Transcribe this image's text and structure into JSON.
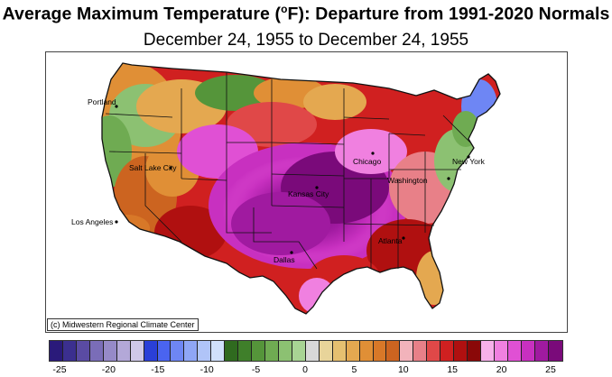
{
  "title_main": "Average Maximum Temperature (",
  "title_degree": "o",
  "title_rest": "F): Departure from 1991-2020 Normals",
  "subtitle": "December 24, 1955 to December 24, 1955",
  "credit": "(c) Midwestern Regional Climate Center",
  "cities": [
    {
      "name": "Portland"
    },
    {
      "name": "Salt Lake City"
    },
    {
      "name": "Los Angeles"
    },
    {
      "name": "Dallas"
    },
    {
      "name": "New York"
    },
    {
      "name": "Washington"
    },
    {
      "name": "Kansas City"
    },
    {
      "name": "Chicago"
    },
    {
      "name": "Atlanta"
    }
  ],
  "legend": {
    "colors": [
      "#2a1a7a",
      "#3b2f8f",
      "#5a4ba3",
      "#7a6db8",
      "#968ac8",
      "#b3a8d8",
      "#cfc8e8",
      "#2a3fd8",
      "#4a64f0",
      "#6e86f4",
      "#8fa6f6",
      "#b0c4f8",
      "#d0e0fb",
      "#2f6a1f",
      "#3f7f2a",
      "#55953a",
      "#6fab52",
      "#8cc172",
      "#a8d494",
      "#d8d8d8",
      "#e8d49a",
      "#e6c070",
      "#e4a850",
      "#e08f36",
      "#d87828",
      "#cc6420",
      "#f2b3bb",
      "#e88088",
      "#e04848",
      "#d02020",
      "#b01010",
      "#8a0808",
      "#f7b0ea",
      "#f080e0",
      "#e050d4",
      "#c830c0",
      "#a01aa0",
      "#7a0a7a"
    ],
    "ticks": [
      "-25",
      "-20",
      "-15",
      "-10",
      "-5",
      "0",
      "5",
      "10",
      "15",
      "20",
      "25"
    ]
  }
}
